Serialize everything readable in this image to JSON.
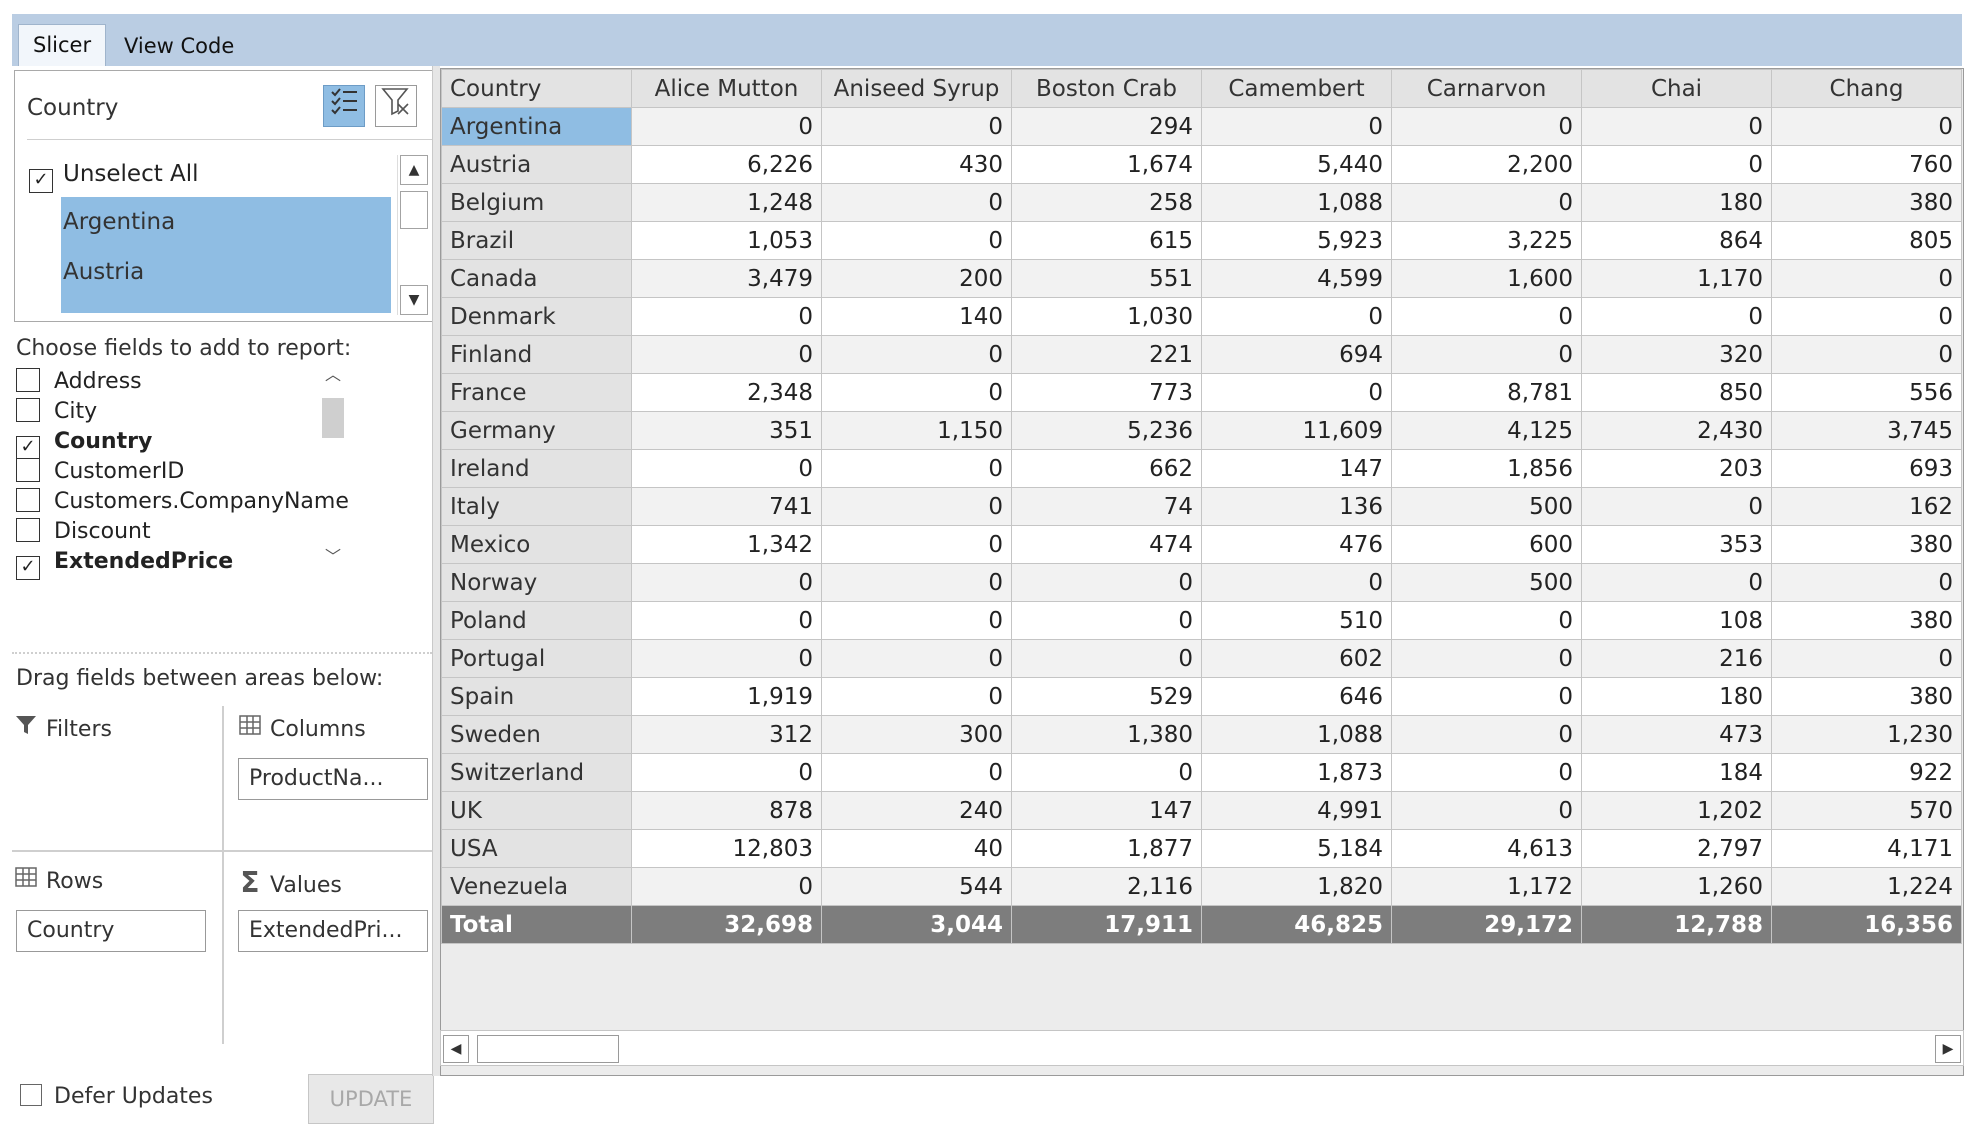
{
  "tabs": [
    {
      "label": "Slicer",
      "active": true
    },
    {
      "label": "View Code",
      "active": false
    }
  ],
  "slicer": {
    "title": "Country",
    "multi_select_icon": "multi-select-icon",
    "clear_filter_icon": "clear-filter-icon",
    "unselect_all": "Unselect All",
    "items": [
      "Argentina",
      "Austria"
    ]
  },
  "field_list": {
    "heading": "Choose fields to add to report:",
    "fields": [
      {
        "label": "Address",
        "checked": false
      },
      {
        "label": "City",
        "checked": false
      },
      {
        "label": "Country",
        "checked": true
      },
      {
        "label": "CustomerID",
        "checked": false
      },
      {
        "label": "Customers.CompanyName",
        "checked": false
      },
      {
        "label": "Discount",
        "checked": false
      },
      {
        "label": "ExtendedPrice",
        "checked": true
      }
    ]
  },
  "areas": {
    "heading": "Drag fields between areas below:",
    "filters": {
      "label": "Filters",
      "icon": "filter-icon"
    },
    "columns": {
      "label": "Columns",
      "icon": "columns-grid-icon",
      "chip": "ProductNa..."
    },
    "rows": {
      "label": "Rows",
      "icon": "rows-grid-icon",
      "chip": "Country"
    },
    "values": {
      "label": "Values",
      "icon": "sigma-icon",
      "chip": "ExtendedPri..."
    }
  },
  "defer_updates": {
    "label": "Defer Updates",
    "checked": false
  },
  "update_button": "UPDATE",
  "grid": {
    "corner": "Country",
    "columns": [
      "Alice Mutton",
      "Aniseed Syrup",
      "Boston Crab",
      "Camembert",
      "Carnarvon",
      "Chai",
      "Chang"
    ],
    "selected_row": "Argentina",
    "rows": [
      {
        "label": "Argentina",
        "values": [
          "0",
          "0",
          "294",
          "0",
          "0",
          "0",
          "0"
        ]
      },
      {
        "label": "Austria",
        "values": [
          "6,226",
          "430",
          "1,674",
          "5,440",
          "2,200",
          "0",
          "760"
        ]
      },
      {
        "label": "Belgium",
        "values": [
          "1,248",
          "0",
          "258",
          "1,088",
          "0",
          "180",
          "380"
        ]
      },
      {
        "label": "Brazil",
        "values": [
          "1,053",
          "0",
          "615",
          "5,923",
          "3,225",
          "864",
          "805"
        ]
      },
      {
        "label": "Canada",
        "values": [
          "3,479",
          "200",
          "551",
          "4,599",
          "1,600",
          "1,170",
          "0"
        ]
      },
      {
        "label": "Denmark",
        "values": [
          "0",
          "140",
          "1,030",
          "0",
          "0",
          "0",
          "0"
        ]
      },
      {
        "label": "Finland",
        "values": [
          "0",
          "0",
          "221",
          "694",
          "0",
          "320",
          "0"
        ]
      },
      {
        "label": "France",
        "values": [
          "2,348",
          "0",
          "773",
          "0",
          "8,781",
          "850",
          "556"
        ]
      },
      {
        "label": "Germany",
        "values": [
          "351",
          "1,150",
          "5,236",
          "11,609",
          "4,125",
          "2,430",
          "3,745"
        ]
      },
      {
        "label": "Ireland",
        "values": [
          "0",
          "0",
          "662",
          "147",
          "1,856",
          "203",
          "693"
        ]
      },
      {
        "label": "Italy",
        "values": [
          "741",
          "0",
          "74",
          "136",
          "500",
          "0",
          "162"
        ]
      },
      {
        "label": "Mexico",
        "values": [
          "1,342",
          "0",
          "474",
          "476",
          "600",
          "353",
          "380"
        ]
      },
      {
        "label": "Norway",
        "values": [
          "0",
          "0",
          "0",
          "0",
          "500",
          "0",
          "0"
        ]
      },
      {
        "label": "Poland",
        "values": [
          "0",
          "0",
          "0",
          "510",
          "0",
          "108",
          "380"
        ]
      },
      {
        "label": "Portugal",
        "values": [
          "0",
          "0",
          "0",
          "602",
          "0",
          "216",
          "0"
        ]
      },
      {
        "label": "Spain",
        "values": [
          "1,919",
          "0",
          "529",
          "646",
          "0",
          "180",
          "380"
        ]
      },
      {
        "label": "Sweden",
        "values": [
          "312",
          "300",
          "1,380",
          "1,088",
          "0",
          "473",
          "1,230"
        ]
      },
      {
        "label": "Switzerland",
        "values": [
          "0",
          "0",
          "0",
          "1,873",
          "0",
          "184",
          "922"
        ]
      },
      {
        "label": "UK",
        "values": [
          "878",
          "240",
          "147",
          "4,991",
          "0",
          "1,202",
          "570"
        ]
      },
      {
        "label": "USA",
        "values": [
          "12,803",
          "40",
          "1,877",
          "5,184",
          "4,613",
          "2,797",
          "4,171"
        ]
      },
      {
        "label": "Venezuela",
        "values": [
          "0",
          "544",
          "2,116",
          "1,820",
          "1,172",
          "1,260",
          "1,224"
        ]
      }
    ],
    "total": {
      "label": "Total",
      "values": [
        "32,698",
        "3,044",
        "17,911",
        "46,825",
        "29,172",
        "12,788",
        "16,356"
      ]
    }
  },
  "colors": {
    "tabstrip": "#bacde3",
    "selection": "#8fbde3",
    "total_row": "#7d7d7d"
  }
}
